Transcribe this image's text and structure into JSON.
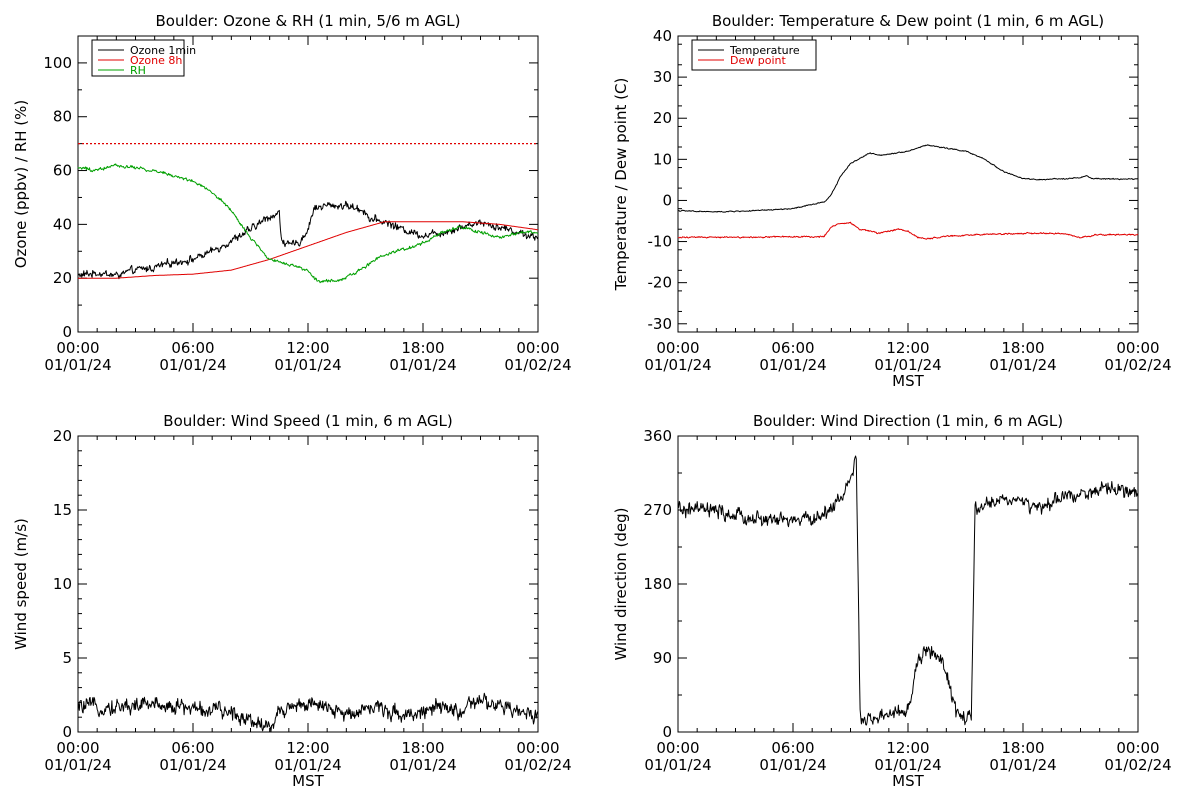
{
  "colors": {
    "black": "#000000",
    "red": "#e00000",
    "green": "#00a000",
    "background": "#ffffff"
  },
  "chart_data": [
    {
      "id": "ozone_rh",
      "type": "line",
      "title": "Boulder: Ozone & RH (1 min, 5/6 m AGL)",
      "xlabel": "",
      "ylabel": "Ozone (ppbv) / RH (%)",
      "xlim": [
        0,
        24
      ],
      "ylim": [
        0,
        110
      ],
      "yticks": [
        0,
        20,
        40,
        60,
        80,
        100
      ],
      "yminor": 10,
      "xtick_hours": [
        0,
        6,
        12,
        18,
        24
      ],
      "xtick_labels": [
        [
          "00:00",
          "01/01/24"
        ],
        [
          "06:00",
          "01/01/24"
        ],
        [
          "12:00",
          "01/01/24"
        ],
        [
          "18:00",
          "01/01/24"
        ],
        [
          "00:00",
          "01/02/24"
        ]
      ],
      "legend": {
        "placement": "top-left",
        "entries": [
          {
            "name": "Ozone 1min",
            "color": "#000000"
          },
          {
            "name": "Ozone 8h",
            "color": "#e00000"
          },
          {
            "name": "RH",
            "color": "#00a000"
          }
        ]
      },
      "reference_lines": [
        {
          "y": 70,
          "color": "#e00000",
          "style": "dotted"
        }
      ],
      "series": [
        {
          "name": "Ozone 1min",
          "color": "#000000",
          "noise": 1.6,
          "points": [
            [
              0,
              21
            ],
            [
              1,
              22
            ],
            [
              2,
              21
            ],
            [
              3,
              23
            ],
            [
              4,
              24
            ],
            [
              5,
              26
            ],
            [
              6,
              27
            ],
            [
              7,
              30
            ],
            [
              8,
              34
            ],
            [
              9,
              38
            ],
            [
              10,
              43
            ],
            [
              10.5,
              44
            ],
            [
              10.6,
              35
            ],
            [
              11,
              32
            ],
            [
              11.5,
              33
            ],
            [
              12,
              38
            ],
            [
              12.3,
              46
            ],
            [
              13,
              47
            ],
            [
              14,
              47
            ],
            [
              15,
              45
            ],
            [
              15.2,
              42
            ],
            [
              16,
              41
            ],
            [
              17,
              38
            ],
            [
              18,
              36
            ],
            [
              19,
              37
            ],
            [
              20,
              39
            ],
            [
              21,
              41
            ],
            [
              22,
              39
            ],
            [
              23,
              37
            ],
            [
              24,
              35
            ]
          ]
        },
        {
          "name": "Ozone 8h",
          "color": "#e00000",
          "noise": 0,
          "points": [
            [
              0,
              20
            ],
            [
              2,
              20
            ],
            [
              4,
              21
            ],
            [
              6,
              21.5
            ],
            [
              8,
              23
            ],
            [
              10,
              27
            ],
            [
              12,
              32
            ],
            [
              14,
              37
            ],
            [
              16,
              41
            ],
            [
              18,
              41
            ],
            [
              20,
              41
            ],
            [
              22,
              40
            ],
            [
              24,
              38
            ]
          ]
        },
        {
          "name": "RH",
          "color": "#00a000",
          "noise": 0.7,
          "points": [
            [
              0,
              61
            ],
            [
              1,
              60
            ],
            [
              2,
              62
            ],
            [
              3,
              61
            ],
            [
              4,
              60
            ],
            [
              5,
              58
            ],
            [
              6,
              56
            ],
            [
              7,
              52
            ],
            [
              8,
              45
            ],
            [
              9,
              35
            ],
            [
              10,
              27
            ],
            [
              11,
              25
            ],
            [
              12,
              23
            ],
            [
              12.5,
              19
            ],
            [
              13.5,
              19
            ],
            [
              14.5,
              22
            ],
            [
              15.5,
              27
            ],
            [
              16.5,
              30
            ],
            [
              17,
              31
            ],
            [
              18,
              33
            ],
            [
              19,
              37
            ],
            [
              20,
              39
            ],
            [
              21,
              37
            ],
            [
              22,
              35
            ],
            [
              23,
              37
            ],
            [
              24,
              37
            ]
          ]
        }
      ]
    },
    {
      "id": "temp_dew",
      "type": "line",
      "title": "Boulder: Temperature & Dew point (1 min, 6 m AGL)",
      "xlabel": "MST",
      "ylabel": "Temperature / Dew point (C)",
      "xlim": [
        0,
        24
      ],
      "ylim": [
        -32,
        40
      ],
      "yticks": [
        -30,
        -20,
        -10,
        0,
        10,
        20,
        30,
        40
      ],
      "yminor": 5,
      "xtick_hours": [
        0,
        6,
        12,
        18,
        24
      ],
      "xtick_labels": [
        [
          "00:00",
          "01/01/24"
        ],
        [
          "06:00",
          "01/01/24"
        ],
        [
          "12:00",
          "01/01/24"
        ],
        [
          "18:00",
          "01/01/24"
        ],
        [
          "00:00",
          "01/02/24"
        ]
      ],
      "legend": {
        "placement": "top-left",
        "entries": [
          {
            "name": "Temperature",
            "color": "#000000"
          },
          {
            "name": "Dew point",
            "color": "#e00000"
          }
        ]
      },
      "series": [
        {
          "name": "Temperature",
          "color": "#000000",
          "noise": 0.15,
          "points": [
            [
              0,
              -2.5
            ],
            [
              2,
              -2.8
            ],
            [
              4,
              -2.5
            ],
            [
              6,
              -2
            ],
            [
              7,
              -1
            ],
            [
              7.7,
              -0.2
            ],
            [
              8,
              1.5
            ],
            [
              8.5,
              6
            ],
            [
              9,
              9
            ],
            [
              10,
              11.5
            ],
            [
              10.5,
              11
            ],
            [
              11,
              11.3
            ],
            [
              12,
              12
            ],
            [
              13,
              13.5
            ],
            [
              14,
              12.7
            ],
            [
              15,
              12
            ],
            [
              16,
              10
            ],
            [
              17,
              7
            ],
            [
              18,
              5.3
            ],
            [
              19,
              5
            ],
            [
              20,
              5.3
            ],
            [
              21,
              5.5
            ],
            [
              21.3,
              6
            ],
            [
              21.6,
              5.3
            ],
            [
              23,
              5.2
            ],
            [
              24,
              5.2
            ]
          ]
        },
        {
          "name": "Dew point",
          "color": "#e00000",
          "noise": 0.2,
          "points": [
            [
              0,
              -9
            ],
            [
              2,
              -9
            ],
            [
              4,
              -9
            ],
            [
              6,
              -8.8
            ],
            [
              7.6,
              -8.8
            ],
            [
              8,
              -6.5
            ],
            [
              8.5,
              -5.5
            ],
            [
              9,
              -5.5
            ],
            [
              9.5,
              -7
            ],
            [
              10.5,
              -8
            ],
            [
              11.5,
              -7
            ],
            [
              12,
              -7.5
            ],
            [
              12.5,
              -9
            ],
            [
              13,
              -9.3
            ],
            [
              14,
              -8.7
            ],
            [
              16,
              -8.3
            ],
            [
              18,
              -8
            ],
            [
              20,
              -8
            ],
            [
              21,
              -9
            ],
            [
              22,
              -8.3
            ],
            [
              24,
              -8.3
            ]
          ]
        }
      ]
    },
    {
      "id": "wind_speed",
      "type": "line",
      "title": "Boulder: Wind Speed (1 min, 6 m AGL)",
      "xlabel": "MST",
      "ylabel": "Wind speed (m/s)",
      "xlim": [
        0,
        24
      ],
      "ylim": [
        0,
        20
      ],
      "yticks": [
        0,
        5,
        10,
        15,
        20
      ],
      "yminor": 1,
      "xtick_hours": [
        0,
        6,
        12,
        18,
        24
      ],
      "xtick_labels": [
        [
          "00:00",
          "01/01/24"
        ],
        [
          "06:00",
          "01/01/24"
        ],
        [
          "12:00",
          "01/01/24"
        ],
        [
          "18:00",
          "01/01/24"
        ],
        [
          "00:00",
          "01/02/24"
        ]
      ],
      "series": [
        {
          "name": "",
          "color": "#000000",
          "noise": 0.6,
          "clip_min": 0,
          "points": [
            [
              0,
              1.7
            ],
            [
              2,
              1.7
            ],
            [
              4,
              1.9
            ],
            [
              6,
              1.6
            ],
            [
              8,
              1.3
            ],
            [
              9,
              0.9
            ],
            [
              10,
              0.3
            ],
            [
              10.5,
              1.3
            ],
            [
              11,
              1.8
            ],
            [
              12,
              1.9
            ],
            [
              13,
              1.5
            ],
            [
              14,
              1.2
            ],
            [
              15,
              1.7
            ],
            [
              16,
              1.5
            ],
            [
              17,
              1.2
            ],
            [
              18,
              1.4
            ],
            [
              19,
              1.6
            ],
            [
              20,
              1.4
            ],
            [
              21,
              2.1
            ],
            [
              22,
              1.7
            ],
            [
              23,
              1.3
            ],
            [
              24,
              1.3
            ]
          ]
        }
      ]
    },
    {
      "id": "wind_dir",
      "type": "line",
      "title": "Boulder: Wind Direction (1 min, 6 m AGL)",
      "xlabel": "MST",
      "ylabel": "Wind direction (deg)",
      "xlim": [
        0,
        24
      ],
      "ylim": [
        0,
        360
      ],
      "yticks": [
        0,
        90,
        180,
        270,
        360
      ],
      "yminor": 45,
      "xtick_hours": [
        0,
        6,
        12,
        18,
        24
      ],
      "xtick_labels": [
        [
          "00:00",
          "01/01/24"
        ],
        [
          "06:00",
          "01/01/24"
        ],
        [
          "12:00",
          "01/01/24"
        ],
        [
          "18:00",
          "01/01/24"
        ],
        [
          "00:00",
          "01/02/24"
        ]
      ],
      "series": [
        {
          "name": "",
          "color": "#000000",
          "noise": 10,
          "clip_min": 0,
          "clip_max": 360,
          "points": [
            [
              0,
              270
            ],
            [
              1.5,
              270
            ],
            [
              3,
              262
            ],
            [
              4.5,
              258
            ],
            [
              6,
              257
            ],
            [
              7.5,
              262
            ],
            [
              8.5,
              285
            ],
            [
              9,
              310
            ],
            [
              9.3,
              330
            ],
            [
              9.5,
              20
            ],
            [
              10,
              15
            ],
            [
              11,
              20
            ],
            [
              12,
              25
            ],
            [
              12.5,
              85
            ],
            [
              13,
              100
            ],
            [
              13.5,
              95
            ],
            [
              14,
              70
            ],
            [
              14.5,
              25
            ],
            [
              15,
              15
            ],
            [
              15.3,
              15
            ],
            [
              15.5,
              270
            ],
            [
              16,
              275
            ],
            [
              17,
              285
            ],
            [
              18,
              280
            ],
            [
              19,
              270
            ],
            [
              20,
              285
            ],
            [
              21,
              292
            ],
            [
              22,
              292
            ],
            [
              23,
              298
            ],
            [
              24,
              285
            ]
          ]
        }
      ]
    }
  ]
}
